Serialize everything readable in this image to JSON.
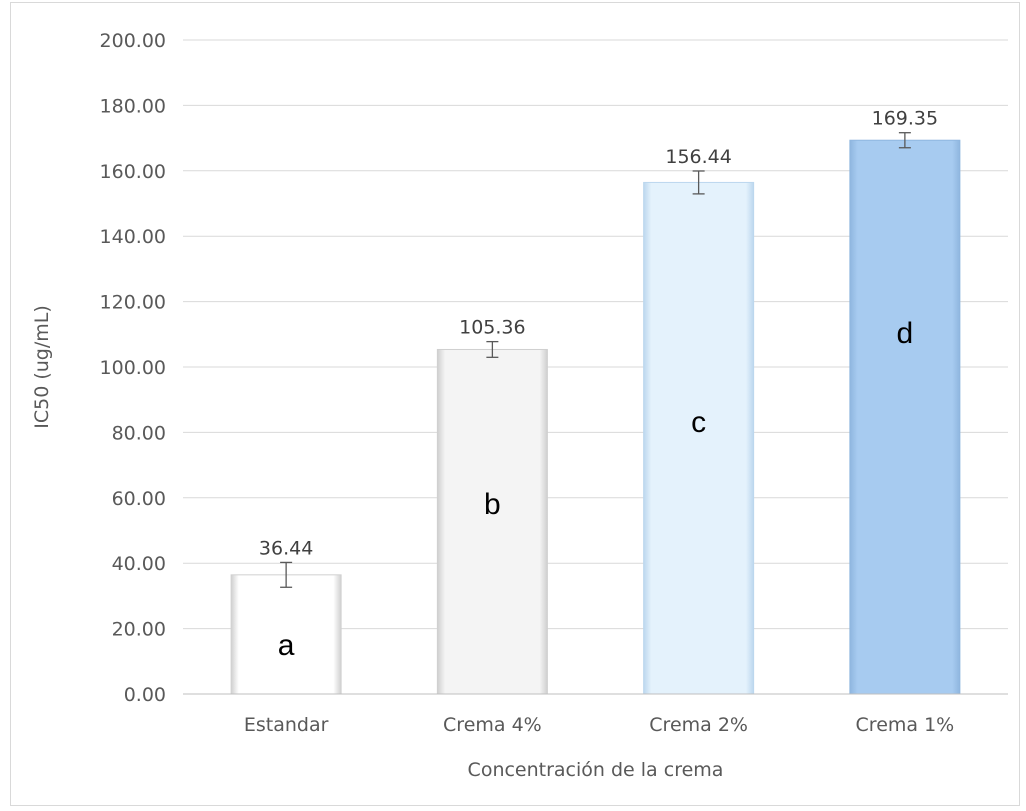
{
  "chart_data": {
    "type": "bar",
    "categories": [
      "Estandar",
      "Crema 4%",
      "Crema 2%",
      "Crema 1%"
    ],
    "values": [
      36.44,
      105.36,
      156.44,
      169.35
    ],
    "value_labels": [
      "36.44",
      "105.36",
      "156.44",
      "169.35"
    ],
    "error_bars": [
      3.8,
      2.4,
      3.5,
      2.3
    ],
    "group_letters": [
      "a",
      "b",
      "c",
      "d"
    ],
    "bar_colors": [
      "#ffffff",
      "#f4f4f4",
      "#e4f2fc",
      "#a7cbf0"
    ],
    "bar_edge_colors": [
      "#d0d0d0",
      "#cfcfcf",
      "#bcd7ee",
      "#8fb6df"
    ],
    "xlabel": "Concentración de la crema",
    "ylabel": "IC50 (ug/mL)",
    "ylim": [
      0,
      200
    ],
    "yticks": [
      "0.00",
      "20.00",
      "40.00",
      "60.00",
      "80.00",
      "100.00",
      "120.00",
      "140.00",
      "160.00",
      "180.00",
      "200.00"
    ],
    "grid": true,
    "legend": "none"
  }
}
